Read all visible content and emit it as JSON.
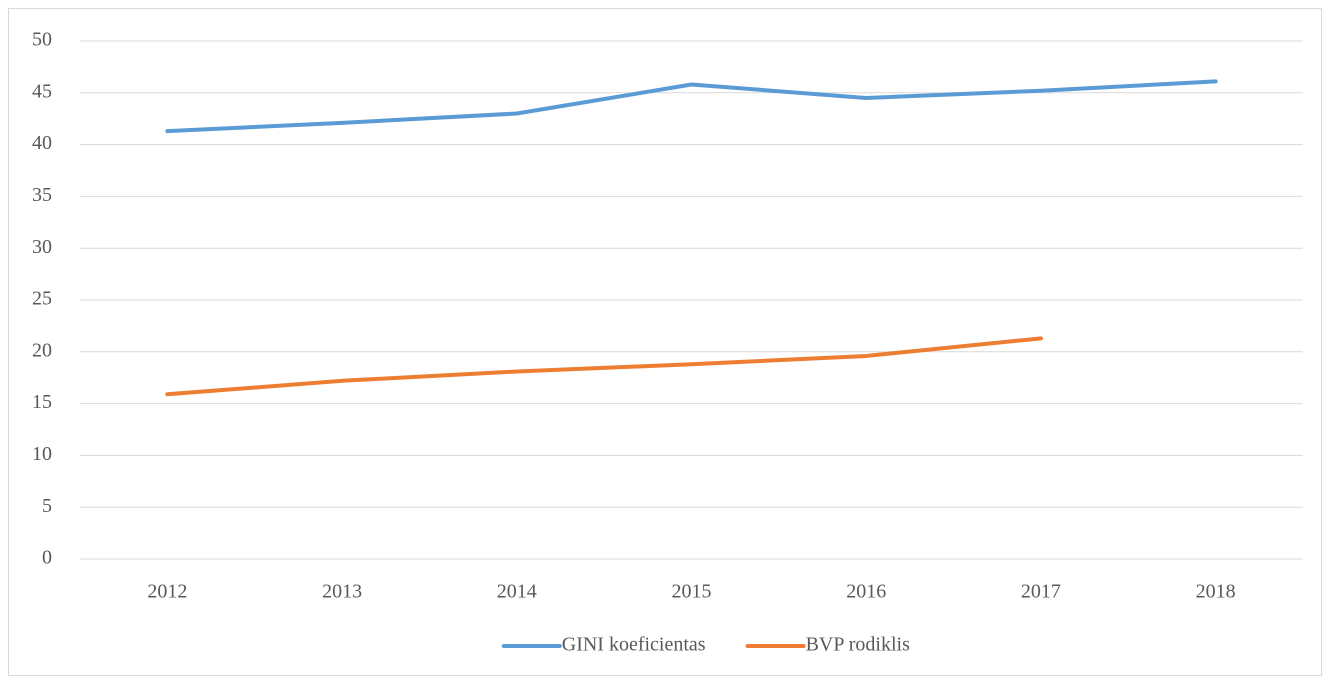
{
  "chart_data": {
    "type": "line",
    "categories": [
      "2012",
      "2013",
      "2014",
      "2015",
      "2016",
      "2017",
      "2018"
    ],
    "series": [
      {
        "name": "GINI koeficientas",
        "color": "#5b9bd5",
        "values": [
          41.3,
          42.1,
          43.0,
          45.8,
          44.5,
          45.2,
          46.1
        ]
      },
      {
        "name": "BVP rodiklis",
        "color": "#ed7d31",
        "values": [
          15.9,
          17.2,
          18.1,
          18.8,
          19.6,
          21.3,
          null
        ]
      }
    ],
    "ylim": [
      0,
      50
    ],
    "yticks": [
      0,
      5,
      10,
      15,
      20,
      25,
      30,
      35,
      40,
      45,
      50
    ],
    "grid": true,
    "legend": "bottom"
  }
}
